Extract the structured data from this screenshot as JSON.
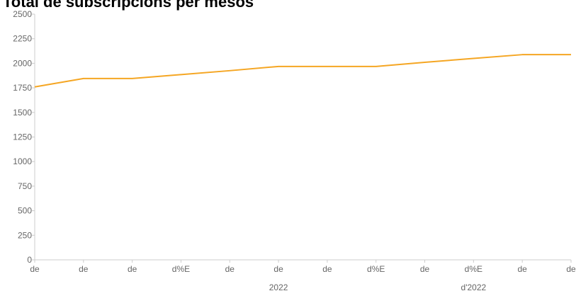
{
  "chart_data": {
    "type": "line",
    "title": "Total de subscripcions per mesos",
    "xlabel": "",
    "ylabel": "",
    "ylim": [
      0,
      2500
    ],
    "y_ticks": [
      0,
      250,
      500,
      750,
      1000,
      1250,
      1500,
      1750,
      2000,
      2250,
      2500
    ],
    "x_ticks": [
      {
        "label": "de",
        "sub": ""
      },
      {
        "label": "de",
        "sub": ""
      },
      {
        "label": "de",
        "sub": ""
      },
      {
        "label": "d%E",
        "sub": ""
      },
      {
        "label": "de",
        "sub": ""
      },
      {
        "label": "de",
        "sub": "2022"
      },
      {
        "label": "de",
        "sub": ""
      },
      {
        "label": "d%E",
        "sub": ""
      },
      {
        "label": "de",
        "sub": ""
      },
      {
        "label": "d%E",
        "sub": "d'2022"
      },
      {
        "label": "de",
        "sub": ""
      },
      {
        "label": "de",
        "sub": ""
      }
    ],
    "series": [
      {
        "color": "#f5a623",
        "values": [
          1760,
          1845,
          1845,
          1885,
          1925,
          1968,
          1968,
          1968,
          2010,
          2050,
          2088,
          2088
        ]
      }
    ],
    "grid": false,
    "legend": "none"
  }
}
